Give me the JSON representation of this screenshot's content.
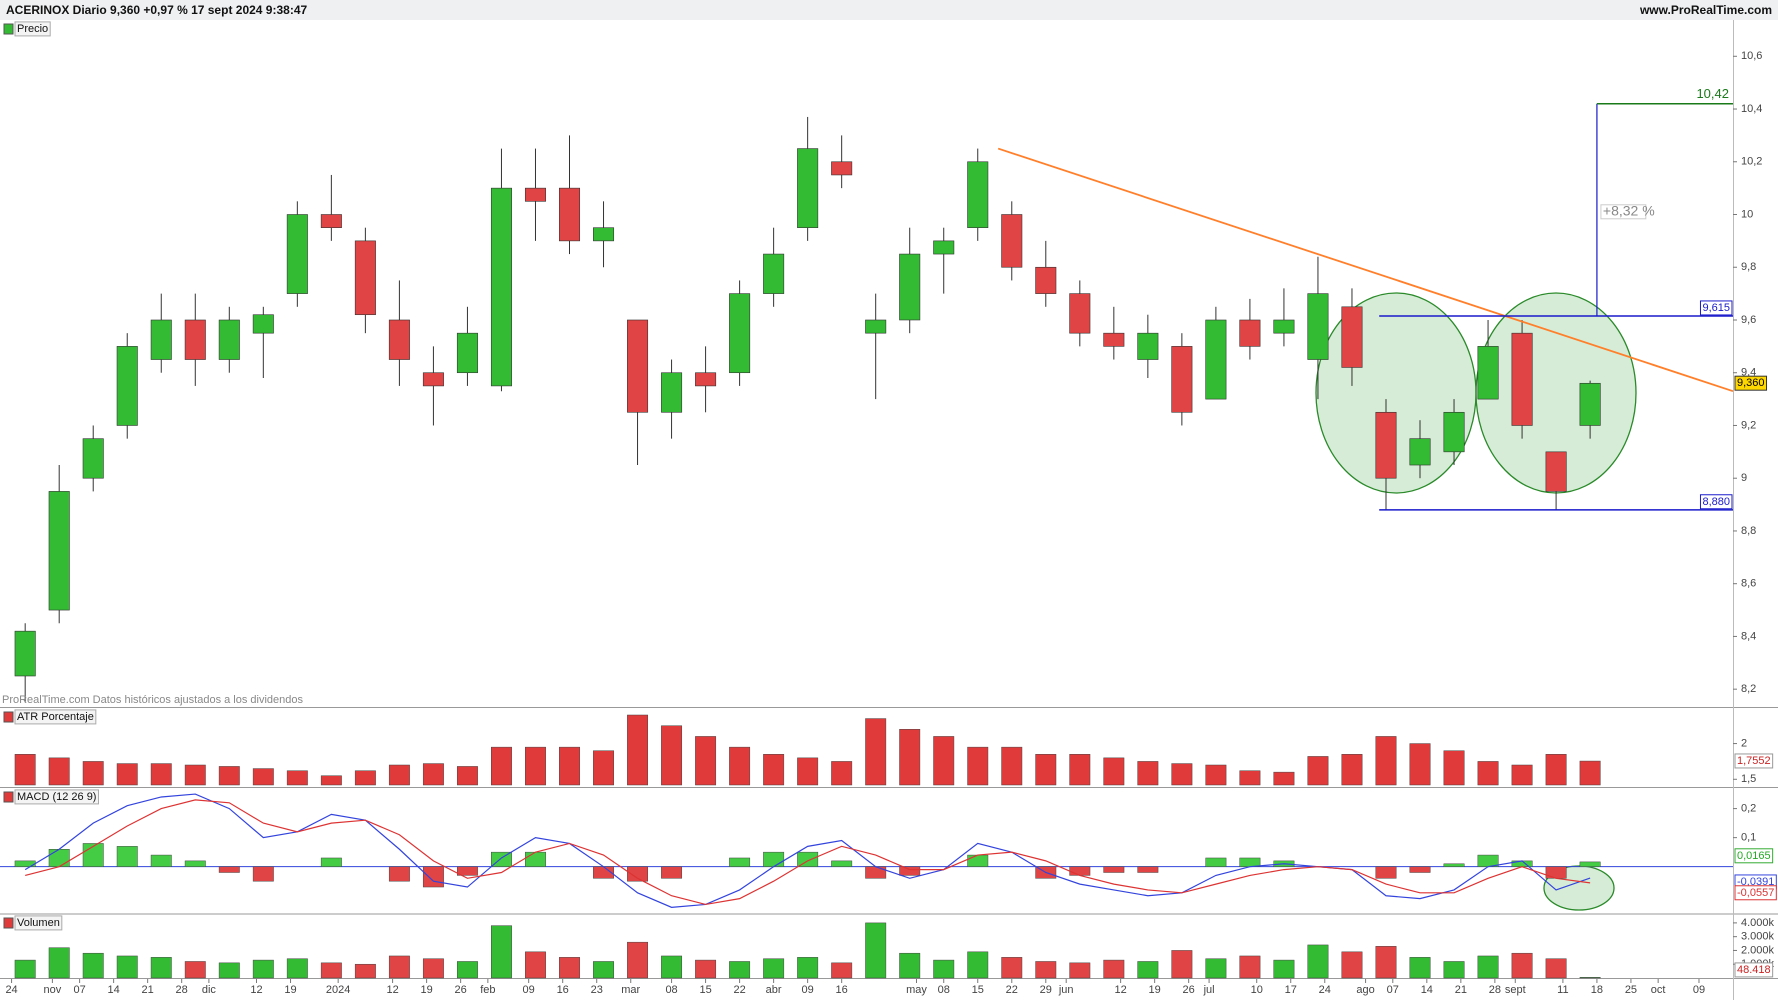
{
  "header": {
    "title": "ACERINOX Diario 9,360 +0,97 % 17 sept 2024 9:38:47",
    "site": "www.ProRealTime.com"
  },
  "chart_data": [
    {
      "type": "candlestick",
      "title": "Precio",
      "note": "ProRealTime.com Datos históricos ajustados a los dividendos",
      "up_color": "#33bb33",
      "down_color": "#e04444",
      "x": [
        2,
        7,
        12,
        17,
        22,
        27,
        32,
        37,
        42,
        47,
        52,
        57,
        62,
        67,
        72,
        77,
        82,
        87,
        92,
        97,
        102,
        107,
        112,
        117,
        122,
        127,
        132,
        137,
        142,
        147,
        152,
        157,
        162,
        167,
        172,
        177,
        182,
        187,
        192,
        197,
        202,
        207,
        212,
        217,
        222,
        227,
        232
      ],
      "open": [
        8.25,
        8.5,
        9.0,
        9.2,
        9.45,
        9.6,
        9.45,
        9.55,
        9.7,
        10.0,
        9.9,
        9.6,
        9.4,
        9.4,
        9.35,
        10.1,
        10.1,
        9.9,
        9.6,
        9.25,
        9.4,
        9.4,
        9.7,
        9.95,
        10.2,
        9.55,
        9.6,
        9.85,
        9.95,
        10.0,
        9.8,
        9.7,
        9.55,
        9.45,
        9.5,
        9.3,
        9.6,
        9.55,
        9.45,
        9.65,
        9.25,
        9.05,
        9.1,
        9.3,
        9.55,
        9.1,
        9.2
      ],
      "high": [
        8.45,
        9.05,
        9.2,
        9.55,
        9.7,
        9.7,
        9.65,
        9.65,
        10.05,
        10.15,
        9.95,
        9.75,
        9.5,
        9.65,
        10.25,
        10.25,
        10.3,
        10.05,
        9.6,
        9.45,
        9.5,
        9.75,
        9.95,
        10.37,
        10.3,
        9.7,
        9.95,
        9.95,
        10.25,
        10.05,
        9.9,
        9.75,
        9.65,
        9.62,
        9.55,
        9.65,
        9.68,
        9.72,
        9.84,
        9.72,
        9.3,
        9.22,
        9.3,
        9.6,
        9.6,
        9.1,
        9.37
      ],
      "low": [
        8.15,
        8.45,
        8.95,
        9.15,
        9.4,
        9.35,
        9.4,
        9.38,
        9.65,
        9.9,
        9.55,
        9.35,
        9.2,
        9.35,
        9.33,
        9.9,
        9.85,
        9.8,
        9.05,
        9.15,
        9.25,
        9.35,
        9.65,
        9.9,
        10.1,
        9.3,
        9.55,
        9.7,
        9.9,
        9.75,
        9.65,
        9.5,
        9.45,
        9.38,
        9.2,
        9.3,
        9.45,
        9.5,
        9.3,
        9.35,
        8.88,
        9.0,
        9.05,
        9.3,
        9.15,
        8.88,
        9.15
      ],
      "close": [
        8.42,
        8.95,
        9.15,
        9.5,
        9.6,
        9.45,
        9.6,
        9.62,
        10.0,
        9.95,
        9.62,
        9.45,
        9.35,
        9.55,
        10.1,
        10.05,
        9.9,
        9.95,
        9.25,
        9.4,
        9.35,
        9.7,
        9.85,
        10.25,
        10.15,
        9.6,
        9.85,
        9.9,
        10.2,
        9.8,
        9.7,
        9.55,
        9.5,
        9.55,
        9.25,
        9.6,
        9.5,
        9.6,
        9.7,
        9.42,
        9.0,
        9.15,
        9.25,
        9.5,
        9.2,
        8.95,
        9.36
      ],
      "last_label": "9,360",
      "ylim": [
        8.14,
        10.73
      ],
      "yticks": [
        {
          "value": 8.2,
          "label": "8,2"
        },
        {
          "value": 8.4,
          "label": "8,4"
        },
        {
          "value": 8.6,
          "label": "8,6"
        },
        {
          "value": 8.8,
          "label": "8,8"
        },
        9,
        {
          "value": 9.2,
          "label": "9,2"
        },
        {
          "value": 9.4,
          "label": "9,4"
        },
        {
          "value": 9.6,
          "label": "9,6"
        },
        {
          "value": 9.8,
          "label": "9,8"
        },
        10,
        {
          "value": 10.2,
          "label": "10,2"
        },
        {
          "value": 10.4,
          "label": "10,4"
        },
        {
          "value": 10.6,
          "label": "10,6"
        }
      ],
      "xlim": [
        -1.7,
        253
      ],
      "xticks": [
        {
          "value": 0,
          "label": "24"
        },
        {
          "value": 6,
          "label": "nov"
        },
        {
          "value": 10,
          "label": "07"
        },
        {
          "value": 15,
          "label": "14"
        },
        {
          "value": 20,
          "label": "21"
        },
        {
          "value": 25,
          "label": "28"
        },
        {
          "value": 29,
          "label": "dic"
        },
        {
          "value": 36,
          "label": "12"
        },
        {
          "value": 41,
          "label": "19"
        },
        {
          "value": 48,
          "label": "2024"
        },
        {
          "value": 56,
          "label": "12"
        },
        {
          "value": 61,
          "label": "19"
        },
        {
          "value": 66,
          "label": "26"
        },
        {
          "value": 70,
          "label": "feb"
        },
        {
          "value": 76,
          "label": "09"
        },
        {
          "value": 81,
          "label": "16"
        },
        {
          "value": 86,
          "label": "23"
        },
        {
          "value": 91,
          "label": "mar"
        },
        {
          "value": 97,
          "label": "08"
        },
        {
          "value": 102,
          "label": "15"
        },
        {
          "value": 107,
          "label": "22"
        },
        {
          "value": 112,
          "label": "abr"
        },
        {
          "value": 117,
          "label": "09"
        },
        {
          "value": 122,
          "label": "16"
        },
        {
          "value": 133,
          "label": "may"
        },
        {
          "value": 137,
          "label": "08"
        },
        {
          "value": 142,
          "label": "15"
        },
        {
          "value": 147,
          "label": "22"
        },
        {
          "value": 152,
          "label": "29"
        },
        {
          "value": 155,
          "label": "jun"
        },
        {
          "value": 163,
          "label": "12"
        },
        {
          "value": 168,
          "label": "19"
        },
        {
          "value": 173,
          "label": "26"
        },
        {
          "value": 176,
          "label": "jul"
        },
        {
          "value": 183,
          "label": "10"
        },
        {
          "value": 188,
          "label": "17"
        },
        {
          "value": 193,
          "label": "24"
        },
        {
          "value": 199,
          "label": "ago"
        },
        {
          "value": 203,
          "label": "07"
        },
        {
          "value": 208,
          "label": "14"
        },
        {
          "value": 213,
          "label": "21"
        },
        {
          "value": 218,
          "label": "28"
        },
        {
          "value": 221,
          "label": "sept"
        },
        {
          "value": 228,
          "label": "11"
        },
        {
          "value": 233,
          "label": "18"
        },
        {
          "value": 238,
          "label": "25"
        },
        {
          "value": 242,
          "label": "oct"
        },
        {
          "value": 248,
          "label": "09"
        }
      ],
      "trendline": {
        "x": [
          145,
          253
        ],
        "y": [
          10.25,
          9.33
        ],
        "color": "#ff7f2a"
      },
      "levels": [
        {
          "value": 9.615,
          "label": "9,615",
          "x_start": 201
        },
        {
          "value": 8.88,
          "label": "8,880",
          "x_start": 201
        }
      ],
      "level_color": "#1a1acc",
      "target": {
        "value": 10.42,
        "label": "10,42",
        "x": 233,
        "change_label": "+8,32 %",
        "color": "#1a7a1a"
      }
    },
    {
      "type": "bar",
      "title": "ATR Porcentaje",
      "color": "#e03a3a",
      "values": [
        1.85,
        1.8,
        1.75,
        1.72,
        1.72,
        1.7,
        1.68,
        1.65,
        1.62,
        1.55,
        1.62,
        1.7,
        1.72,
        1.68,
        1.95,
        1.95,
        1.95,
        1.9,
        2.4,
        2.25,
        2.1,
        1.95,
        1.85,
        1.8,
        1.75,
        2.35,
        2.2,
        2.1,
        1.95,
        1.95,
        1.85,
        1.85,
        1.8,
        1.75,
        1.72,
        1.7,
        1.62,
        1.6,
        1.82,
        1.85,
        2.1,
        2.0,
        1.9,
        1.75,
        1.7,
        1.85,
        1.7552
      ],
      "last_label": "1,7552",
      "ylim": [
        1.42,
        2.47
      ],
      "yticks": [
        {
          "value": 1.5,
          "label": "1,5"
        },
        2
      ]
    },
    {
      "type": "macd",
      "title": "MACD (12 26 9)",
      "histogram": {
        "up_color": "#44cc44",
        "down_color": "#e04444",
        "last_label": "0,0165",
        "values": [
          0.02,
          0.06,
          0.08,
          0.07,
          0.04,
          0.02,
          -0.02,
          -0.05,
          0.0,
          0.03,
          0.0,
          -0.05,
          -0.07,
          -0.03,
          0.05,
          0.05,
          0.0,
          -0.04,
          -0.05,
          -0.04,
          0.0,
          0.03,
          0.05,
          0.05,
          0.02,
          -0.04,
          -0.03,
          0.0,
          0.04,
          0.0,
          -0.04,
          -0.03,
          -0.02,
          -0.02,
          0.0,
          0.03,
          0.03,
          0.02,
          0.0,
          0.0,
          -0.04,
          -0.02,
          0.01,
          0.04,
          0.02,
          -0.04,
          0.0165
        ]
      },
      "series": [
        {
          "color": "#3344dd",
          "last_label": "-0,0391",
          "values": [
            -0.01,
            0.06,
            0.15,
            0.21,
            0.24,
            0.25,
            0.2,
            0.1,
            0.12,
            0.18,
            0.16,
            0.06,
            -0.05,
            -0.07,
            0.03,
            0.1,
            0.08,
            0.0,
            -0.09,
            -0.14,
            -0.13,
            -0.08,
            0.0,
            0.07,
            0.09,
            0.0,
            -0.04,
            -0.01,
            0.08,
            0.05,
            -0.02,
            -0.06,
            -0.08,
            -0.1,
            -0.09,
            -0.03,
            0.0,
            0.01,
            0.0,
            -0.01,
            -0.1,
            -0.11,
            -0.08,
            0.0,
            0.02,
            -0.08,
            -0.0391
          ]
        },
        {
          "color": "#dd3333",
          "last_label": "-0,0557",
          "values": [
            -0.03,
            0.0,
            0.07,
            0.14,
            0.2,
            0.23,
            0.22,
            0.15,
            0.12,
            0.15,
            0.16,
            0.11,
            0.02,
            -0.04,
            -0.02,
            0.05,
            0.08,
            0.04,
            -0.04,
            -0.1,
            -0.13,
            -0.11,
            -0.05,
            0.02,
            0.07,
            0.04,
            -0.01,
            -0.01,
            0.04,
            0.05,
            0.02,
            -0.03,
            -0.06,
            -0.08,
            -0.09,
            -0.06,
            -0.03,
            -0.01,
            0.0,
            -0.01,
            -0.06,
            -0.09,
            -0.09,
            -0.04,
            0.0,
            -0.04,
            -0.0557
          ]
        }
      ],
      "ylim": [
        -0.156,
        0.264
      ],
      "yticks": [
        {
          "value": 0.1,
          "label": "0,1"
        },
        {
          "value": 0.2,
          "label": "0,2"
        }
      ]
    },
    {
      "type": "bar",
      "title": "Volumen",
      "values": [
        1300000,
        2200000,
        1800000,
        1600000,
        1500000,
        1200000,
        1100000,
        1300000,
        1400000,
        1100000,
        1000000,
        1600000,
        1400000,
        1200000,
        3800000,
        1900000,
        1500000,
        1200000,
        2600000,
        1600000,
        1300000,
        1200000,
        1400000,
        1500000,
        1100000,
        4000000,
        1800000,
        1300000,
        1900000,
        1500000,
        1200000,
        1100000,
        1300000,
        1200000,
        2000000,
        1400000,
        1600000,
        1300000,
        2400000,
        1900000,
        2300000,
        1500000,
        1200000,
        1600000,
        1800000,
        1400000,
        48418
      ],
      "last_label": "48.418",
      "ylim": [
        0,
        4500000
      ],
      "yticks": [
        {
          "value": 1000000,
          "label": "1.000k"
        },
        {
          "value": 2000000,
          "label": "2.000k"
        },
        {
          "value": 3000000,
          "label": "3.000k"
        },
        {
          "value": 4000000,
          "label": "4.000k"
        }
      ]
    }
  ]
}
